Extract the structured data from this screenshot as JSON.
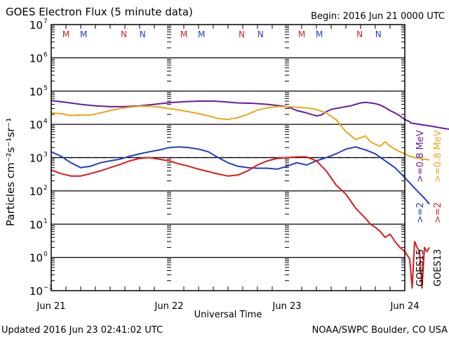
{
  "header": {
    "title": "GOES Electron Flux (5 minute data)",
    "begin": "Begin: 2016 Jun 21 0000 UTC"
  },
  "footer": {
    "updated": "Updated 2016 Jun 23 02:41:02 UTC",
    "credit": "NOAA/SWPC Boulder, CO USA"
  },
  "chart_data": {
    "type": "line",
    "title": "GOES Electron Flux (5 minute data)",
    "xlabel": "Universal Time",
    "ylabel": "Particles cm⁻²s⁻¹sr⁻¹",
    "yscale": "log",
    "ylim_exponents": [
      -1,
      7
    ],
    "ytick_labels": [
      {
        "base": "10",
        "exp": "7"
      },
      {
        "base": "10",
        "exp": "6"
      },
      {
        "base": "10",
        "exp": "5"
      },
      {
        "base": "10",
        "exp": "4"
      },
      {
        "base": "10",
        "exp": "3"
      },
      {
        "base": "10",
        "exp": "2"
      },
      {
        "base": "10",
        "exp": "1"
      },
      {
        "base": "10",
        "exp": "0"
      },
      {
        "base": "10",
        "exp": "-1"
      }
    ],
    "xlim_hours": [
      0,
      72
    ],
    "xtick_labels": [
      "Jun 21",
      "Jun 22",
      "Jun 23",
      "Jun 24"
    ],
    "grid": "horizontal lines at each decade",
    "threshold": {
      "value": 1000,
      "style": "dashed"
    },
    "satellite_markers": [
      {
        "label": "M",
        "hour": 3.0,
        "color": "#cc2020"
      },
      {
        "label": "M",
        "hour": 6.6,
        "color": "#2040c0"
      },
      {
        "label": "N",
        "hour": 14.8,
        "color": "#cc2020"
      },
      {
        "label": "N",
        "hour": 18.6,
        "color": "#2040c0"
      },
      {
        "label": "M",
        "hour": 27.0,
        "color": "#cc2020"
      },
      {
        "label": "M",
        "hour": 30.6,
        "color": "#2040c0"
      },
      {
        "label": "N",
        "hour": 38.8,
        "color": "#cc2020"
      },
      {
        "label": "N",
        "hour": 42.6,
        "color": "#2040c0"
      },
      {
        "label": "M",
        "hour": 51.0,
        "color": "#cc2020"
      },
      {
        "label": "M",
        "hour": 54.6,
        "color": "#2040c0"
      },
      {
        "label": "N",
        "hour": 62.8,
        "color": "#cc2020"
      },
      {
        "label": "N",
        "hour": 66.6,
        "color": "#2040c0"
      }
    ],
    "legend": {
      "placement": "right",
      "columns": [
        {
          "satellite": "GOES15",
          "entries": [
            {
              "label": ">=2",
              "color": "#2040c0"
            },
            {
              "label": ">=0.8 MeV",
              "color": "#6a1aa0"
            }
          ]
        },
        {
          "satellite": "GOES13",
          "entries": [
            {
              "label": ">=2",
              "color": "#dd1a1a"
            },
            {
              "label": ">=0.8 MeV",
              "color": "#e8a814"
            }
          ]
        }
      ]
    },
    "series": [
      {
        "name": "GOES15 >=0.8 MeV",
        "color": "#6a1aa0",
        "x_hours": [
          0,
          3,
          6,
          9,
          12,
          15,
          18,
          21,
          24,
          27,
          30,
          33,
          35,
          36.5,
          38,
          41,
          44,
          46,
          48,
          49,
          50,
          51,
          52,
          53,
          54,
          55,
          56,
          57,
          58,
          59,
          60,
          61,
          62,
          63,
          64,
          65,
          66,
          67,
          68,
          69,
          70,
          71,
          72,
          73,
          73.2,
          75,
          76,
          77,
          78,
          79,
          80,
          81,
          82,
          83,
          84,
          85,
          86,
          87,
          88,
          89,
          90
        ],
        "values": [
          52000,
          46000,
          40000,
          36000,
          34000,
          34000,
          36000,
          40000,
          45000,
          48000,
          50000,
          50000,
          48000,
          46000,
          44000,
          43000,
          40000,
          37000,
          34000,
          30000,
          26000,
          24000,
          22000,
          20000,
          18000,
          19000,
          24000,
          28000,
          30000,
          32000,
          34000,
          36000,
          40000,
          44000,
          46000,
          44000,
          42000,
          38000,
          32000,
          26000,
          22000,
          18000,
          14000,
          12000,
          11000,
          10000,
          9500,
          9000,
          8500,
          8000,
          7500,
          7200,
          7000,
          6800,
          6500,
          6200,
          6000,
          6000,
          6000,
          6000,
          6000
        ]
      },
      {
        "name": "GOES13 >=0.8 MeV",
        "color": "#e8a814",
        "x_hours": [
          0,
          2,
          4,
          6,
          8,
          10,
          12,
          14,
          16,
          18,
          20,
          22,
          24,
          26,
          28,
          30,
          32,
          34,
          36,
          38,
          40,
          42,
          44,
          46,
          48,
          50,
          52,
          54,
          56,
          58,
          60,
          62,
          64,
          65,
          66,
          67,
          68,
          69,
          70,
          71,
          72,
          73,
          74,
          75,
          76,
          77
        ],
        "values": [
          22000,
          21000,
          18500,
          19000,
          19000,
          22000,
          26000,
          30000,
          33000,
          35000,
          35000,
          33000,
          30000,
          27000,
          24000,
          21000,
          18000,
          15000,
          14000,
          16000,
          20000,
          27000,
          31000,
          34000,
          34000,
          33000,
          31000,
          28000,
          22000,
          14000,
          6000,
          3500,
          4500,
          3000,
          2500,
          2200,
          3000,
          2200,
          1800,
          1500,
          1300,
          1100,
          1000,
          950,
          900,
          850
        ]
      },
      {
        "name": "GOES15 >=2 MeV",
        "color": "#2040c0",
        "x_hours": [
          0,
          2,
          4,
          6,
          8,
          10,
          12,
          14,
          16,
          18,
          20,
          22,
          24,
          26,
          28,
          30,
          32,
          34,
          36,
          38,
          40,
          42,
          44,
          46,
          48,
          50,
          52,
          54,
          56,
          58,
          60,
          62,
          64,
          66,
          68,
          70,
          72,
          74,
          76,
          77
        ],
        "values": [
          1500,
          1100,
          700,
          500,
          550,
          700,
          800,
          900,
          1100,
          1300,
          1500,
          1700,
          2000,
          2100,
          2000,
          1800,
          1500,
          1000,
          700,
          550,
          500,
          480,
          480,
          450,
          550,
          700,
          600,
          800,
          1000,
          1300,
          1800,
          2100,
          1700,
          1300,
          800,
          500,
          250,
          120,
          60,
          40
        ]
      },
      {
        "name": "GOES13 >=2 MeV",
        "color": "#dd1a1a",
        "x_hours": [
          0,
          2,
          4,
          6,
          8,
          10,
          12,
          14,
          16,
          18,
          20,
          22,
          24,
          26,
          28,
          30,
          32,
          34,
          36,
          38,
          40,
          42,
          44,
          46,
          48,
          50,
          52,
          54,
          56,
          58,
          60,
          62,
          64,
          65,
          66,
          67,
          68,
          69,
          70,
          71,
          72,
          73,
          73.5,
          74,
          74.5,
          75,
          75.5,
          76,
          76.5,
          77
        ],
        "values": [
          420,
          330,
          280,
          280,
          330,
          400,
          500,
          620,
          800,
          950,
          1000,
          900,
          800,
          650,
          550,
          450,
          380,
          320,
          280,
          300,
          400,
          600,
          800,
          950,
          1000,
          1050,
          1050,
          800,
          400,
          150,
          80,
          30,
          15,
          10,
          8,
          6,
          4,
          5,
          3,
          2,
          1.5,
          0.9,
          0.12,
          3,
          2,
          1.5,
          0.12,
          2,
          1.5,
          2
        ]
      }
    ]
  }
}
